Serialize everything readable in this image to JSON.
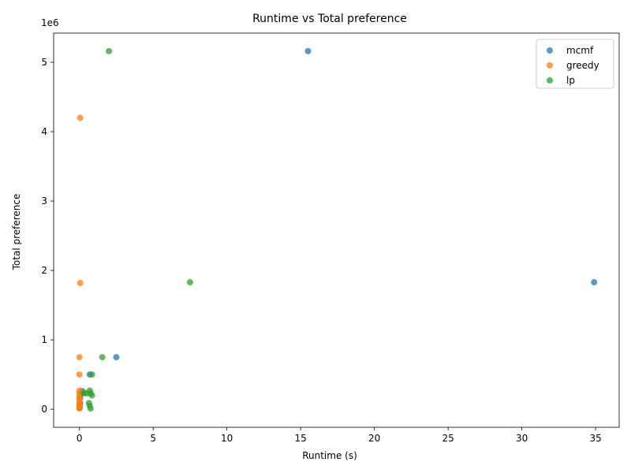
{
  "chart_data": {
    "type": "scatter",
    "title": "Runtime vs Total preference",
    "xlabel": "Runtime (s)",
    "ylabel": "Total preference",
    "y_multiplier": "1e6",
    "xlim": [
      -1.75,
      36.6
    ],
    "ylim": [
      -0.26,
      5.42
    ],
    "xticks": [
      0,
      5,
      10,
      15,
      20,
      25,
      30,
      35
    ],
    "yticks": [
      0,
      1,
      2,
      3,
      4,
      5
    ],
    "grid": false,
    "legend_position": "top-right",
    "series": [
      {
        "name": "mcmf",
        "color": "#1f77b4",
        "points": [
          [
            15.5,
            5.16
          ],
          [
            34.9,
            1.83
          ],
          [
            2.5,
            0.75
          ],
          [
            0.7,
            0.5
          ],
          [
            0.2,
            0.26
          ],
          [
            0.1,
            0.22
          ],
          [
            0.05,
            0.16
          ],
          [
            0.05,
            0.09
          ],
          [
            0.03,
            0.05
          ],
          [
            0.02,
            0.02
          ]
        ]
      },
      {
        "name": "greedy",
        "color": "#ff7f0e",
        "points": [
          [
            0.05,
            4.2
          ],
          [
            0.05,
            1.82
          ],
          [
            0.0,
            0.75
          ],
          [
            0.0,
            0.5
          ],
          [
            0.0,
            0.27
          ],
          [
            0.0,
            0.23
          ],
          [
            0.0,
            0.18
          ],
          [
            0.0,
            0.15
          ],
          [
            0.0,
            0.1
          ],
          [
            0.0,
            0.07
          ],
          [
            0.0,
            0.04
          ],
          [
            0.0,
            0.02
          ],
          [
            0.0,
            0.01
          ]
        ]
      },
      {
        "name": "lp",
        "color": "#2ca02c",
        "points": [
          [
            2.0,
            5.16
          ],
          [
            7.5,
            1.83
          ],
          [
            1.55,
            0.75
          ],
          [
            0.85,
            0.5
          ],
          [
            0.7,
            0.27
          ],
          [
            0.3,
            0.23
          ],
          [
            0.5,
            0.23
          ],
          [
            0.75,
            0.23
          ],
          [
            0.85,
            0.2
          ],
          [
            0.65,
            0.09
          ],
          [
            0.7,
            0.05
          ],
          [
            0.75,
            0.01
          ]
        ]
      }
    ]
  }
}
